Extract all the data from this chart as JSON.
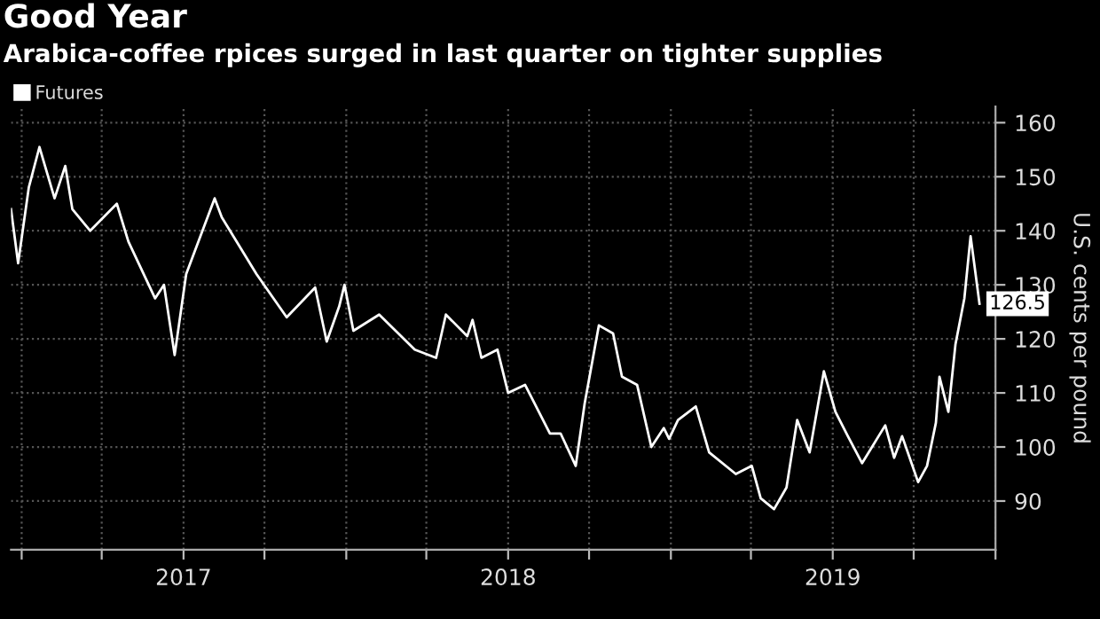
{
  "chart_data": {
    "type": "line",
    "title": "Good Year",
    "subtitle": "Arabica-coffee rpices surged in last quarter on tighter supplies",
    "ylabel": "U.S. cents per pound",
    "x": [
      "2016-12-20",
      "2016-12-28",
      "2017-01-09",
      "2017-01-21",
      "2017-01-29",
      "2017-02-07",
      "2017-02-19",
      "2017-02-27",
      "2017-03-19",
      "2017-04-18",
      "2017-05-01",
      "2017-05-31",
      "2017-06-10",
      "2017-06-22",
      "2017-07-05",
      "2017-08-06",
      "2017-08-14",
      "2017-09-22",
      "2017-10-26",
      "2017-11-27",
      "2017-12-10",
      "2017-12-24",
      "2017-12-30",
      "2018-01-09",
      "2018-02-07",
      "2018-03-19",
      "2018-04-12",
      "2018-04-23",
      "2018-05-17",
      "2018-05-23",
      "2018-06-02",
      "2018-06-20",
      "2018-07-02",
      "2018-07-21",
      "2018-08-18",
      "2018-08-30",
      "2018-09-16",
      "2018-09-26",
      "2018-10-12",
      "2018-10-28",
      "2018-11-07",
      "2018-11-24",
      "2018-12-10",
      "2018-12-24",
      "2018-12-30",
      "2019-01-09",
      "2019-01-29",
      "2019-02-13",
      "2019-03-15",
      "2019-04-02",
      "2019-04-12",
      "2019-04-27",
      "2019-05-11",
      "2019-05-23",
      "2019-06-06",
      "2019-06-22",
      "2019-07-05",
      "2019-07-19",
      "2019-08-04",
      "2019-08-30",
      "2019-09-09",
      "2019-09-18",
      "2019-10-06",
      "2019-10-16",
      "2019-10-26",
      "2019-10-30",
      "2019-11-09",
      "2019-11-17",
      "2019-11-27",
      "2019-12-04",
      "2019-12-10",
      "2019-12-14"
    ],
    "series": [
      {
        "name": "Futures",
        "color": "#ffffff",
        "values": [
          144,
          134,
          148,
          155.5,
          151,
          146,
          152,
          144,
          140,
          145,
          138,
          127.5,
          130,
          117,
          132,
          146,
          142.5,
          132,
          124,
          129.5,
          119.5,
          126,
          130,
          121.5,
          124.5,
          118,
          116.5,
          124.5,
          120.5,
          123.5,
          116.5,
          118,
          110,
          111.5,
          102.5,
          102.5,
          96.5,
          108,
          122.5,
          121,
          113,
          111.5,
          100,
          103.5,
          101.5,
          105,
          107.5,
          99,
          95,
          96.5,
          90.5,
          88.5,
          92.5,
          105,
          99,
          114,
          106.5,
          102,
          97,
          104,
          98,
          102,
          93.5,
          96.5,
          104.5,
          113,
          106.5,
          119,
          127.5,
          139,
          131.5,
          126.5
        ]
      }
    ],
    "annotations": [
      {
        "text": "126.5",
        "x": "2019-12-14",
        "y": 126.5
      }
    ],
    "xlim": [
      "2016-12-20",
      "2020-01-01"
    ],
    "ylim": [
      81,
      163
    ],
    "xticks": [
      {
        "value": "2017-01-01",
        "label": null
      },
      {
        "value": "2017-04-01",
        "label": null
      },
      {
        "value": "2017-07-02",
        "label": "2017"
      },
      {
        "value": "2017-10-01",
        "label": null
      },
      {
        "value": "2018-01-01",
        "label": null
      },
      {
        "value": "2018-04-01",
        "label": null
      },
      {
        "value": "2018-07-02",
        "label": "2018"
      },
      {
        "value": "2018-10-01",
        "label": null
      },
      {
        "value": "2019-01-01",
        "label": null
      },
      {
        "value": "2019-04-01",
        "label": null
      },
      {
        "value": "2019-07-02",
        "label": "2019"
      },
      {
        "value": "2019-10-01",
        "label": null
      },
      {
        "value": "2020-01-01",
        "label": null
      }
    ],
    "yticks": [
      90,
      100,
      110,
      120,
      130,
      140,
      150,
      160
    ],
    "grid": true,
    "legend": "top left",
    "line_style": "solid",
    "marker": "none"
  }
}
